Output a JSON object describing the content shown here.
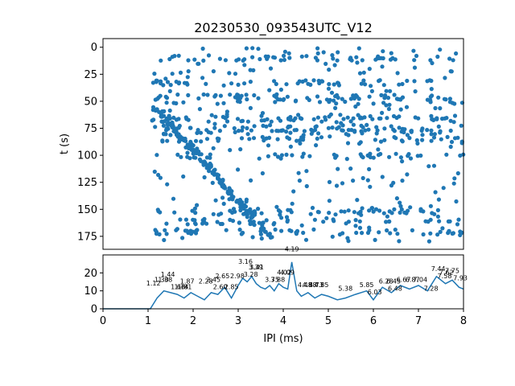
{
  "chart_data": [
    {
      "type": "scatter",
      "title": "20230530_093543UTC_V12",
      "ylabel": "t (s)",
      "xlim": [
        0,
        8
      ],
      "ylim": [
        187,
        -8
      ],
      "y_inverted": true,
      "yticks": [
        "0",
        "25",
        "50",
        "75",
        "100",
        "125",
        "150",
        "175"
      ],
      "color": "#1f77b4",
      "bands_t": [
        10,
        33,
        46,
        50,
        65,
        67,
        75,
        79,
        85,
        101,
        152,
        162,
        171
      ],
      "diagonal": {
        "x": [
          1.2,
          3.7
        ],
        "t": [
          58,
          175
        ]
      }
    },
    {
      "type": "line",
      "xlabel": "IPI (ms)",
      "ylabel": "",
      "xlim": [
        0,
        8
      ],
      "ylim": [
        0,
        30
      ],
      "xticks": [
        "0",
        "1",
        "2",
        "3",
        "4",
        "5",
        "6",
        "7",
        "8"
      ],
      "yticks": [
        "0",
        "10",
        "20"
      ],
      "color": "#1f77b4",
      "x": [
        0,
        1.05,
        1.2,
        1.35,
        1.5,
        1.65,
        1.8,
        1.95,
        2.1,
        2.25,
        2.4,
        2.55,
        2.7,
        2.85,
        3.0,
        3.1,
        3.2,
        3.3,
        3.4,
        3.5,
        3.6,
        3.7,
        3.8,
        3.9,
        4.0,
        4.1,
        4.19,
        4.3,
        4.4,
        4.55,
        4.7,
        4.85,
        5.0,
        5.2,
        5.38,
        5.6,
        5.85,
        6.0,
        6.2,
        6.4,
        6.6,
        6.8,
        7.0,
        7.2,
        7.4,
        7.6,
        7.75,
        7.9,
        8.0
      ],
      "y": [
        0,
        0,
        6,
        10,
        9,
        8,
        6,
        9,
        7,
        5,
        9,
        8,
        12,
        6,
        13,
        17,
        15,
        18,
        14,
        12,
        11,
        13,
        10,
        14,
        12,
        11,
        26,
        10,
        7,
        9,
        6,
        8,
        7,
        5,
        6,
        8,
        10,
        5,
        12,
        9,
        13,
        11,
        13,
        10,
        18,
        14,
        16,
        12,
        11
      ],
      "annotations": [
        {
          "x": 1.12,
          "y": 13,
          "text": "1.12"
        },
        {
          "x": 1.3,
          "y": 15,
          "text": "1.30"
        },
        {
          "x": 1.38,
          "y": 15,
          "text": "1.38"
        },
        {
          "x": 1.44,
          "y": 18,
          "text": "1.44"
        },
        {
          "x": 1.66,
          "y": 11,
          "text": "1.66"
        },
        {
          "x": 1.74,
          "y": 11,
          "text": "1.74"
        },
        {
          "x": 1.81,
          "y": 11,
          "text": "1.81"
        },
        {
          "x": 1.87,
          "y": 14,
          "text": "1.87"
        },
        {
          "x": 2.28,
          "y": 14,
          "text": "2.28"
        },
        {
          "x": 2.45,
          "y": 15,
          "text": "2.45"
        },
        {
          "x": 2.6,
          "y": 11,
          "text": "2.60"
        },
        {
          "x": 2.65,
          "y": 17,
          "text": "2.65"
        },
        {
          "x": 2.85,
          "y": 11,
          "text": "2.85"
        },
        {
          "x": 2.98,
          "y": 17,
          "text": "2.98"
        },
        {
          "x": 3.16,
          "y": 25,
          "text": "3.16"
        },
        {
          "x": 3.28,
          "y": 18,
          "text": "3.28"
        },
        {
          "x": 3.39,
          "y": 22,
          "text": "3.39"
        },
        {
          "x": 3.41,
          "y": 22,
          "text": "3.41"
        },
        {
          "x": 3.75,
          "y": 15,
          "text": "3.75"
        },
        {
          "x": 3.88,
          "y": 15,
          "text": "3.88"
        },
        {
          "x": 4.02,
          "y": 19,
          "text": "4.02"
        },
        {
          "x": 4.09,
          "y": 19,
          "text": "4.09"
        },
        {
          "x": 4.19,
          "y": 32,
          "text": "4.19"
        },
        {
          "x": 4.48,
          "y": 12,
          "text": "4.48"
        },
        {
          "x": 4.58,
          "y": 12,
          "text": "4.58"
        },
        {
          "x": 4.73,
          "y": 12,
          "text": "4.73"
        },
        {
          "x": 4.85,
          "y": 12,
          "text": "4.85"
        },
        {
          "x": 5.38,
          "y": 10,
          "text": "5.38"
        },
        {
          "x": 5.85,
          "y": 12,
          "text": "5.85"
        },
        {
          "x": 6.03,
          "y": 8,
          "text": "6.03"
        },
        {
          "x": 6.28,
          "y": 14,
          "text": "6.28"
        },
        {
          "x": 6.45,
          "y": 14,
          "text": "6.45"
        },
        {
          "x": 6.48,
          "y": 10,
          "text": "6.48"
        },
        {
          "x": 6.67,
          "y": 15,
          "text": "6.67"
        },
        {
          "x": 6.87,
          "y": 15,
          "text": "6.87"
        },
        {
          "x": 7.04,
          "y": 15,
          "text": "7.04"
        },
        {
          "x": 7.28,
          "y": 10,
          "text": "7.28"
        },
        {
          "x": 7.44,
          "y": 21,
          "text": "7.44"
        },
        {
          "x": 7.58,
          "y": 17,
          "text": "7.58"
        },
        {
          "x": 7.62,
          "y": 19,
          "text": "7.62"
        },
        {
          "x": 7.75,
          "y": 20,
          "text": "7.75"
        },
        {
          "x": 7.93,
          "y": 16,
          "text": "7.93"
        }
      ]
    }
  ]
}
